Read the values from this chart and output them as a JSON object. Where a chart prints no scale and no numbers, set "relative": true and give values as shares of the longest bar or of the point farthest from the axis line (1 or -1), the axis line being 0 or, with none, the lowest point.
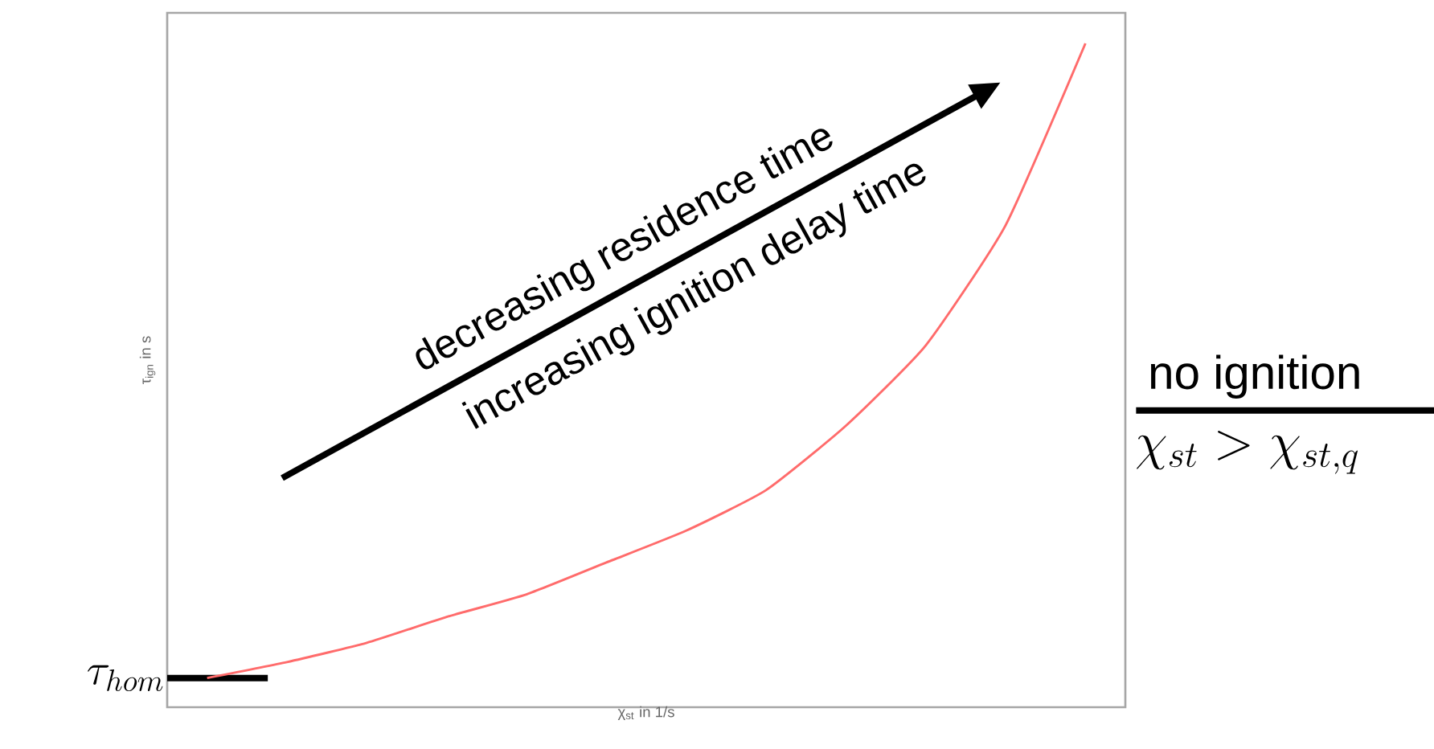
{
  "chart_data": {
    "type": "line",
    "relative": true,
    "xlabel": "χ$_{st}$ in 1/s",
    "ylabel": "τ$_{ign}$ in s",
    "categories": [
      null,
      null,
      null,
      null,
      null,
      null,
      null,
      null,
      null,
      null,
      null,
      null
    ],
    "series": [
      {
        "color": "#ff6b6b",
        "values": [
          0.044,
          0.068,
          0.097,
          0.136,
          0.17,
          0.218,
          0.266,
          0.327,
          0.424,
          0.545,
          0.726,
          1.0
        ]
      }
    ],
    "ref_lines": [
      {
        "axis": "y",
        "value": 0.044,
        "label": "\\tau_{hom}",
        "color": "#000000"
      }
    ],
    "annotations": [
      "decreasing residence time",
      "increasing ignition delay time",
      "no ignition",
      "\\chi_{st} > \\chi_{st,q}"
    ]
  }
}
